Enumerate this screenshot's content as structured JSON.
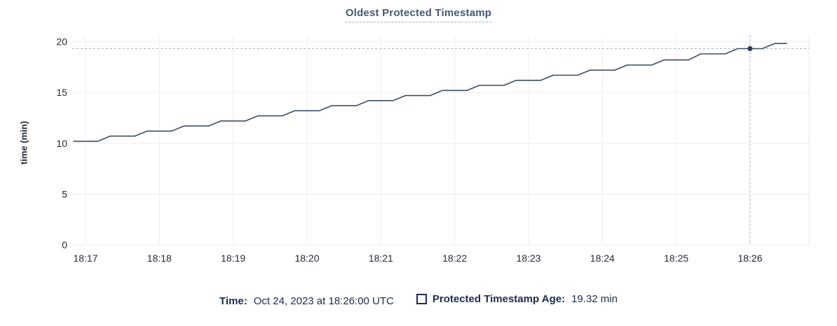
{
  "header": {
    "title": "Oldest Protected Timestamp"
  },
  "footer": {
    "time_label": "Time:",
    "time_value": "Oct 24, 2023 at 18:26:00 UTC",
    "legend_label": "Protected Timestamp Age:",
    "legend_value": "19.32 min",
    "legend_swatch": "open-square"
  },
  "colors": {
    "title_text": "#475872",
    "title_underline": "#9fafc0",
    "footer_text": "#1c2b4f",
    "tick_text": "#242a35",
    "grid": "#ededf0",
    "plot_border": "#e8eaed",
    "series_line": "#3e4c66",
    "hover_dot": "#2f3e5a",
    "crosshair": "#a4b4c2"
  },
  "chart_data": {
    "type": "line",
    "title": "Oldest Protected Timestamp",
    "xlabel": "",
    "ylabel": "time (min)",
    "x_tick_labels": [
      "18:17",
      "18:18",
      "18:19",
      "18:20",
      "18:21",
      "18:22",
      "18:23",
      "18:24",
      "18:25",
      "18:26"
    ],
    "x_tick_offsets_sec": [
      0,
      60,
      120,
      180,
      240,
      300,
      360,
      420,
      480,
      540
    ],
    "y_ticks": [
      0,
      5,
      10,
      15,
      20
    ],
    "ylim": [
      0,
      20
    ],
    "grid": true,
    "legend_position": "bottom",
    "series": [
      {
        "name": "Protected Timestamp Age",
        "unit": "min",
        "start_time": "18:16:50",
        "start_offset_sec": -10,
        "sample_interval_sec": 10,
        "values": [
          10.2,
          10.2,
          10.2,
          10.7,
          10.7,
          10.7,
          11.2,
          11.2,
          11.2,
          11.7,
          11.7,
          11.7,
          12.2,
          12.2,
          12.2,
          12.7,
          12.7,
          12.7,
          13.2,
          13.2,
          13.2,
          13.7,
          13.7,
          13.7,
          14.2,
          14.2,
          14.2,
          14.7,
          14.7,
          14.7,
          15.2,
          15.2,
          15.2,
          15.7,
          15.7,
          15.7,
          16.2,
          16.2,
          16.2,
          16.7,
          16.7,
          16.7,
          17.2,
          17.2,
          17.2,
          17.7,
          17.7,
          17.7,
          18.2,
          18.2,
          18.2,
          18.8,
          18.8,
          18.8,
          19.32,
          19.32,
          19.32,
          19.82,
          19.82
        ]
      }
    ],
    "hover_point": {
      "offset_sec": 540,
      "time": "18:26:00",
      "value": 19.32
    }
  }
}
